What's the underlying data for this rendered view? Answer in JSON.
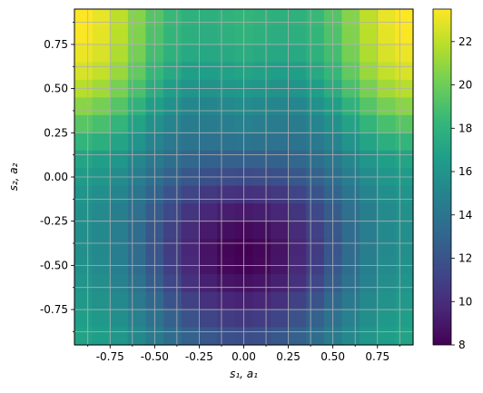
{
  "chart_data": {
    "type": "heatmap",
    "title": "",
    "xlabel": "s₁, a₁",
    "ylabel": "s₂, a₂",
    "xlim": [
      -0.95,
      0.95
    ],
    "ylim": [
      -0.95,
      0.95
    ],
    "xticks": [
      "-0.75",
      "-0.50",
      "-0.25",
      "0.00",
      "0.25",
      "0.50",
      "0.75"
    ],
    "xtick_values": [
      -0.75,
      -0.5,
      -0.25,
      0.0,
      0.25,
      0.5,
      0.75
    ],
    "yticks": [
      "-0.75",
      "-0.50",
      "-0.25",
      "0.00",
      "0.25",
      "0.50",
      "0.75"
    ],
    "ytick_values": [
      -0.75,
      -0.5,
      -0.25,
      0.0,
      0.25,
      0.5,
      0.75
    ],
    "minor_tick_step": 0.125,
    "grid": true,
    "grid_color": "#b0b0b0",
    "colormap": "viridis",
    "colorbar": {
      "vmin": 8,
      "vmax": 23.5,
      "ticks": [
        "8",
        "10",
        "12",
        "14",
        "16",
        "18",
        "20",
        "22"
      ],
      "tick_values": [
        8,
        10,
        12,
        14,
        16,
        18,
        20,
        22
      ]
    },
    "grid_resolution": 19,
    "cell_size": 0.1,
    "values": [
      [
        23.5,
        23.0,
        22.0,
        20.6,
        19.3,
        18.4,
        17.9,
        17.8,
        18.0,
        18.2,
        18.0,
        17.8,
        17.9,
        18.4,
        19.3,
        20.6,
        22.0,
        23.0,
        23.5
      ],
      [
        23.4,
        22.9,
        21.9,
        20.5,
        19.1,
        18.2,
        17.7,
        17.6,
        17.8,
        18.0,
        17.8,
        17.6,
        17.7,
        18.2,
        19.1,
        20.5,
        21.9,
        22.9,
        23.4
      ],
      [
        23.1,
        22.6,
        21.6,
        20.2,
        18.8,
        17.9,
        17.3,
        17.2,
        17.4,
        17.6,
        17.4,
        17.2,
        17.3,
        17.9,
        18.8,
        20.2,
        21.6,
        22.6,
        23.1
      ],
      [
        22.6,
        22.1,
        21.1,
        19.7,
        18.3,
        17.3,
        16.7,
        16.6,
        16.8,
        17.0,
        16.8,
        16.6,
        16.7,
        17.3,
        18.3,
        19.7,
        21.1,
        22.1,
        22.6
      ],
      [
        21.8,
        21.3,
        20.3,
        19.0,
        17.6,
        16.6,
        16.0,
        15.9,
        16.1,
        16.3,
        16.1,
        15.9,
        16.0,
        16.6,
        17.6,
        19.0,
        20.3,
        21.3,
        21.8
      ],
      [
        20.7,
        20.2,
        19.3,
        18.0,
        16.7,
        15.8,
        15.2,
        15.1,
        15.3,
        15.5,
        15.3,
        15.1,
        15.2,
        15.8,
        16.7,
        18.0,
        19.3,
        20.2,
        20.7
      ],
      [
        19.4,
        18.9,
        18.1,
        16.9,
        15.8,
        15.0,
        14.5,
        14.4,
        14.6,
        14.8,
        14.6,
        14.4,
        14.5,
        15.0,
        15.8,
        16.9,
        18.1,
        18.9,
        19.4
      ],
      [
        18.1,
        17.7,
        17.0,
        16.0,
        15.0,
        14.3,
        13.9,
        13.8,
        13.9,
        14.0,
        13.9,
        13.8,
        13.9,
        14.3,
        15.0,
        16.0,
        17.0,
        17.7,
        18.1
      ],
      [
        17.0,
        16.7,
        16.1,
        15.2,
        14.3,
        13.6,
        13.1,
        12.9,
        12.8,
        12.8,
        12.8,
        12.9,
        13.1,
        13.6,
        14.3,
        15.2,
        16.1,
        16.7,
        17.0
      ],
      [
        16.4,
        16.1,
        15.5,
        14.6,
        13.6,
        12.8,
        12.2,
        11.8,
        11.6,
        11.5,
        11.6,
        11.8,
        12.2,
        12.8,
        13.6,
        14.6,
        15.5,
        16.1,
        16.4
      ],
      [
        16.0,
        15.7,
        15.0,
        14.0,
        13.0,
        12.0,
        11.2,
        10.6,
        10.3,
        10.2,
        10.3,
        10.6,
        11.2,
        12.0,
        13.0,
        14.0,
        15.0,
        15.7,
        16.0
      ],
      [
        15.8,
        15.4,
        14.7,
        13.7,
        12.5,
        11.4,
        10.4,
        9.7,
        9.3,
        9.1,
        9.3,
        9.7,
        10.4,
        11.4,
        12.5,
        13.7,
        14.7,
        15.4,
        15.8
      ],
      [
        15.7,
        15.3,
        14.6,
        13.5,
        12.2,
        11.0,
        9.9,
        9.1,
        8.6,
        8.4,
        8.6,
        9.1,
        9.9,
        11.0,
        12.2,
        13.5,
        14.6,
        15.3,
        15.7
      ],
      [
        15.7,
        15.3,
        14.6,
        13.4,
        12.1,
        10.8,
        9.7,
        8.8,
        8.2,
        8.0,
        8.2,
        8.8,
        9.7,
        10.8,
        12.1,
        13.4,
        14.6,
        15.3,
        15.7
      ],
      [
        15.8,
        15.4,
        14.7,
        13.5,
        12.2,
        10.9,
        9.8,
        8.9,
        8.3,
        8.1,
        8.3,
        8.9,
        9.8,
        10.9,
        12.2,
        13.5,
        14.7,
        15.4,
        15.8
      ],
      [
        16.0,
        15.6,
        14.9,
        13.8,
        12.6,
        11.3,
        10.2,
        9.4,
        8.9,
        8.7,
        8.9,
        9.4,
        10.2,
        11.3,
        12.6,
        13.8,
        14.9,
        15.6,
        16.0
      ],
      [
        16.3,
        15.9,
        15.3,
        14.3,
        13.2,
        12.0,
        11.0,
        10.2,
        9.7,
        9.5,
        9.7,
        10.2,
        11.0,
        12.0,
        13.2,
        14.3,
        15.3,
        15.9,
        16.3
      ],
      [
        16.6,
        16.3,
        15.7,
        14.8,
        13.8,
        12.8,
        11.9,
        11.2,
        10.8,
        10.6,
        10.8,
        11.2,
        11.9,
        12.8,
        13.8,
        14.8,
        15.7,
        16.3,
        16.6
      ],
      [
        16.9,
        16.6,
        16.1,
        15.3,
        14.4,
        13.5,
        12.8,
        12.2,
        11.8,
        11.7,
        11.8,
        12.2,
        12.8,
        13.5,
        14.4,
        15.3,
        16.1,
        16.6,
        16.9
      ]
    ]
  }
}
